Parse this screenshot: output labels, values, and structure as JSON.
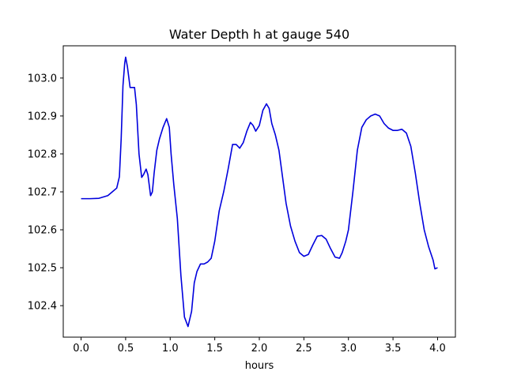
{
  "chart_data": {
    "type": "line",
    "title": "Water Depth h at gauge 540",
    "xlabel": "hours",
    "ylabel": "",
    "xlim": [
      -0.2,
      4.2
    ],
    "ylim": [
      102.317,
      103.085
    ],
    "xticks": [
      0.0,
      0.5,
      1.0,
      1.5,
      2.0,
      2.5,
      3.0,
      3.5,
      4.0
    ],
    "xtick_labels": [
      "0.0",
      "0.5",
      "1.0",
      "1.5",
      "2.0",
      "2.5",
      "3.0",
      "3.5",
      "4.0"
    ],
    "yticks": [
      102.4,
      102.5,
      102.6,
      102.7,
      102.8,
      102.9,
      103.0
    ],
    "ytick_labels": [
      "102.4",
      "102.5",
      "102.6",
      "102.7",
      "102.8",
      "102.9",
      "103.0"
    ],
    "grid": false,
    "legend": "none",
    "series": [
      {
        "color": "#0000dd",
        "x": [
          0.0,
          0.1,
          0.2,
          0.3,
          0.35,
          0.4,
          0.43,
          0.45,
          0.47,
          0.49,
          0.5,
          0.52,
          0.55,
          0.58,
          0.6,
          0.62,
          0.65,
          0.68,
          0.7,
          0.73,
          0.75,
          0.78,
          0.8,
          0.82,
          0.85,
          0.88,
          0.92,
          0.96,
          0.99,
          1.01,
          1.04,
          1.08,
          1.12,
          1.16,
          1.2,
          1.24,
          1.27,
          1.3,
          1.34,
          1.38,
          1.42,
          1.46,
          1.5,
          1.55,
          1.6,
          1.65,
          1.7,
          1.74,
          1.78,
          1.82,
          1.86,
          1.9,
          1.93,
          1.96,
          2.0,
          2.04,
          2.08,
          2.11,
          2.14,
          2.18,
          2.22,
          2.26,
          2.3,
          2.35,
          2.4,
          2.45,
          2.5,
          2.55,
          2.6,
          2.65,
          2.7,
          2.75,
          2.8,
          2.85,
          2.9,
          2.93,
          2.97,
          3.0,
          3.05,
          3.1,
          3.15,
          3.2,
          3.25,
          3.3,
          3.35,
          3.4,
          3.45,
          3.5,
          3.55,
          3.6,
          3.65,
          3.7,
          3.75,
          3.8,
          3.85,
          3.9,
          3.95,
          3.97,
          4.0
        ],
        "y": [
          102.682,
          102.682,
          102.683,
          102.69,
          102.7,
          102.71,
          102.74,
          102.84,
          102.98,
          103.04,
          103.055,
          103.03,
          102.975,
          102.975,
          102.975,
          102.93,
          102.8,
          102.738,
          102.745,
          102.76,
          102.745,
          102.69,
          102.7,
          102.75,
          102.81,
          102.84,
          102.87,
          102.893,
          102.87,
          102.8,
          102.72,
          102.63,
          102.48,
          102.37,
          102.345,
          102.385,
          102.46,
          102.49,
          102.51,
          102.51,
          102.515,
          102.525,
          102.57,
          102.65,
          102.7,
          102.76,
          102.825,
          102.825,
          102.815,
          102.83,
          102.86,
          102.883,
          102.875,
          102.86,
          102.875,
          102.915,
          102.932,
          102.92,
          102.88,
          102.85,
          102.81,
          102.74,
          102.67,
          102.61,
          102.57,
          102.54,
          102.53,
          102.535,
          102.56,
          102.583,
          102.585,
          102.575,
          102.55,
          102.528,
          102.525,
          102.54,
          102.57,
          102.6,
          102.7,
          102.81,
          102.87,
          102.89,
          102.9,
          102.905,
          102.9,
          102.88,
          102.868,
          102.862,
          102.862,
          102.865,
          102.855,
          102.82,
          102.75,
          102.67,
          102.6,
          102.555,
          102.52,
          102.497,
          102.5
        ]
      }
    ]
  }
}
